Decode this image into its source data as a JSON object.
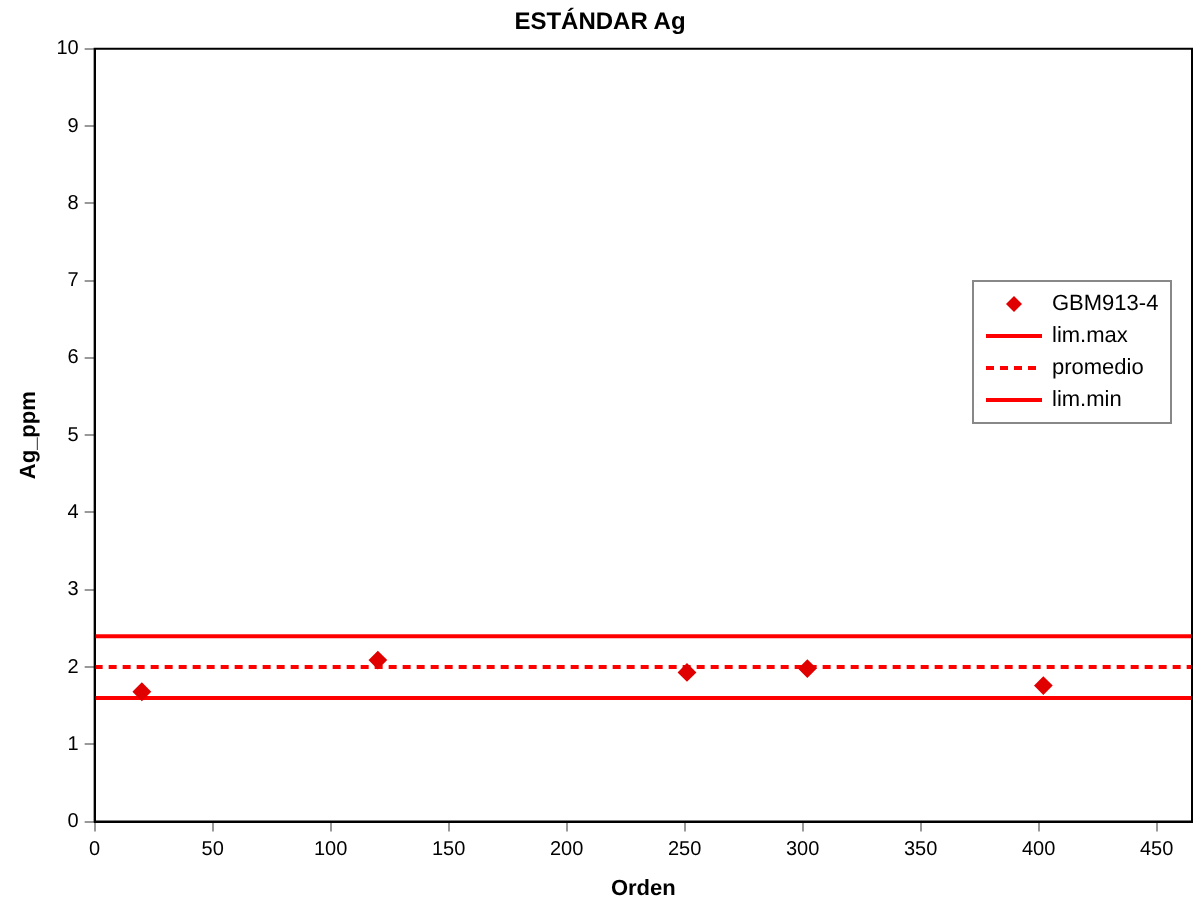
{
  "chart_data": {
    "type": "scatter",
    "title": "ESTÁNDAR Ag",
    "xlabel": "Orden",
    "ylabel": "Ag_ppm",
    "xlim": [
      0,
      465
    ],
    "xticks": [
      0,
      50,
      100,
      150,
      200,
      250,
      300,
      350,
      400,
      450
    ],
    "ylim": [
      0,
      10
    ],
    "yticks": [
      0,
      1,
      2,
      3,
      4,
      5,
      6,
      7,
      8,
      9,
      10
    ],
    "grid": false,
    "legend": "right",
    "series": [
      {
        "name": "GBM913-4",
        "color": "#e00000",
        "marker": "diamond",
        "x": [
          20,
          120,
          251,
          302,
          402
        ],
        "values": [
          1.68,
          2.09,
          1.93,
          1.98,
          1.76
        ]
      },
      {
        "name": "lim.max",
        "type": "line",
        "color": "#ff0000",
        "line_style": "solid",
        "x": [
          0,
          465
        ],
        "values": [
          2.4,
          2.4
        ]
      },
      {
        "name": "promedio",
        "type": "line",
        "color": "#ff0000",
        "line_style": "dashed",
        "x": [
          0,
          465
        ],
        "values": [
          2.0,
          2.0
        ]
      },
      {
        "name": "lim.min",
        "type": "line",
        "color": "#ff0000",
        "line_style": "solid",
        "x": [
          0,
          465
        ],
        "values": [
          1.6,
          1.6
        ]
      }
    ]
  }
}
